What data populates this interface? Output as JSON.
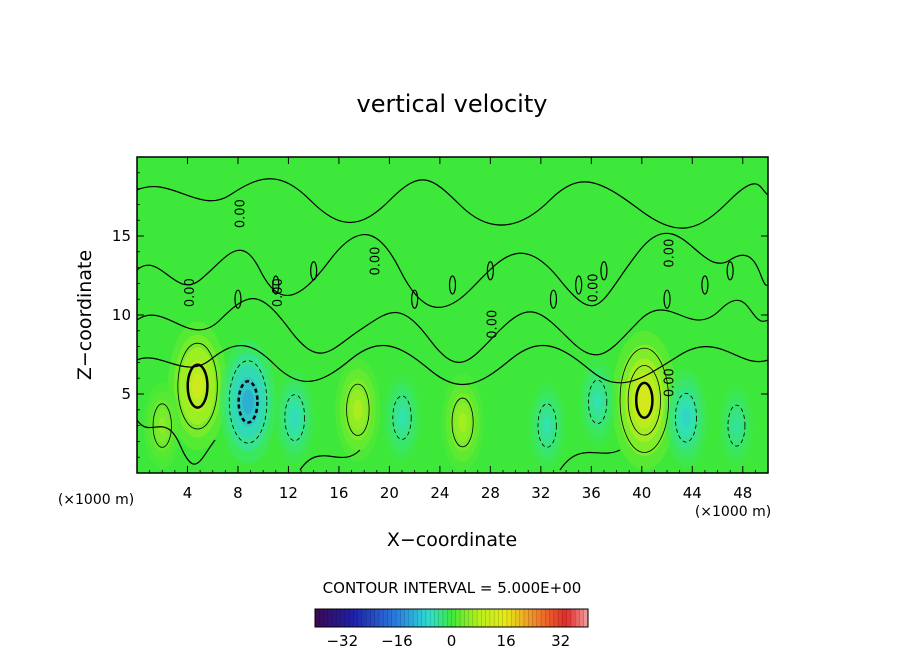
{
  "chart_data": {
    "type": "heatmap",
    "title": "vertical velocity",
    "xlabel": "X−coordinate",
    "ylabel": "Z−coordinate",
    "x_unit": "(×1000 m)",
    "y_unit": "(×1000 m)",
    "xlim": [
      0,
      50
    ],
    "ylim": [
      0,
      20
    ],
    "x_ticks": [
      4,
      8,
      12,
      16,
      20,
      24,
      28,
      32,
      36,
      40,
      44,
      48
    ],
    "y_ticks": [
      5,
      10,
      15
    ],
    "contour_interval_text": "CONTOUR INTERVAL = 5.000E+00",
    "contour_interval": 5,
    "colorbar": {
      "range": [
        -40,
        40
      ],
      "tick_values": [
        -32,
        -16,
        0,
        16,
        32
      ],
      "tick_labels": [
        "−32",
        "−16",
        "0",
        "16",
        "32"
      ]
    },
    "zero_contour_label": "0.00",
    "positive_cells": [
      {
        "x": 4.8,
        "z": 5.5,
        "peak": 14
      },
      {
        "x": 17.5,
        "z": 4.0,
        "peak": 9
      },
      {
        "x": 25.8,
        "z": 3.2,
        "peak": 8
      },
      {
        "x": 40.2,
        "z": 4.6,
        "peak": 16
      },
      {
        "x": 2.0,
        "z": 3.0,
        "peak": 6
      }
    ],
    "negative_cells": [
      {
        "x": 8.8,
        "z": 4.5,
        "peak": -13
      },
      {
        "x": 12.5,
        "z": 3.5,
        "peak": -7
      },
      {
        "x": 21.0,
        "z": 3.5,
        "peak": -6
      },
      {
        "x": 32.5,
        "z": 3.0,
        "peak": -6
      },
      {
        "x": 36.5,
        "z": 4.5,
        "peak": -6
      },
      {
        "x": 43.5,
        "z": 3.5,
        "peak": -8
      },
      {
        "x": 47.5,
        "z": 3.0,
        "peak": -5
      }
    ]
  }
}
